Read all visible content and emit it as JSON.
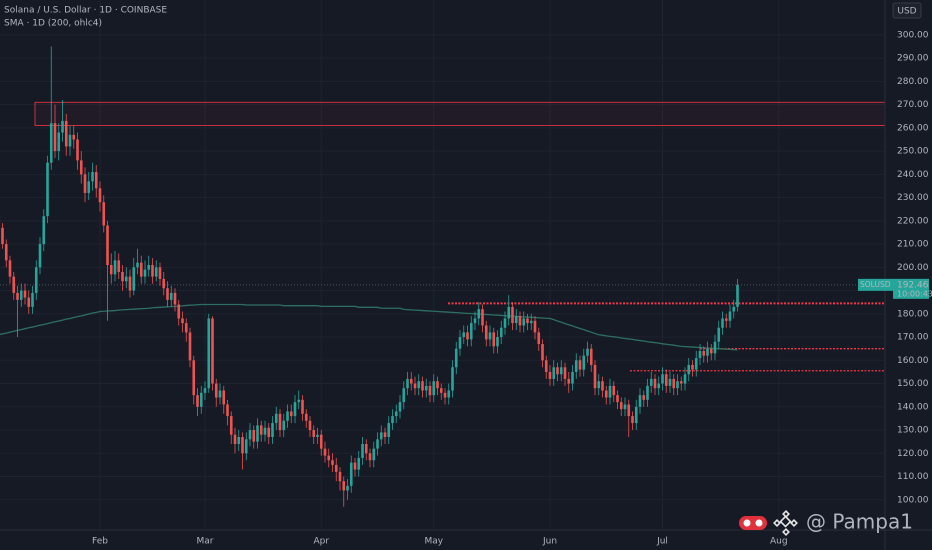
{
  "chart_data": {
    "type": "candlestick",
    "title": "Solana / U.S. Dollar · 1D · COINBASE",
    "indicator_label": "SMA · 1D (200, ohlc4)",
    "currency": "USD",
    "symbol": "SOLUSD",
    "countdown": "10:00:43",
    "watermark": "@ Pampa1",
    "up_color": "#26a69a",
    "down_color": "#ef5350",
    "level_color": "#f23645",
    "grid": true,
    "categories": [
      null,
      null,
      null,
      null,
      null,
      null,
      null,
      null,
      null,
      null,
      null,
      null,
      null,
      null,
      null,
      null,
      null,
      null,
      null,
      null,
      null,
      null,
      null,
      null,
      null,
      null,
      null,
      "Feb",
      null,
      null,
      null,
      null,
      null,
      null,
      null,
      null,
      null,
      null,
      null,
      null,
      null,
      null,
      null,
      null,
      null,
      null,
      null,
      null,
      null,
      null,
      null,
      null,
      null,
      null,
      null,
      "Mar",
      null,
      null,
      null,
      null,
      null,
      null,
      null,
      null,
      null,
      null,
      null,
      null,
      null,
      null,
      null,
      null,
      null,
      null,
      null,
      null,
      null,
      null,
      null,
      null,
      null,
      null,
      null,
      null,
      null,
      null,
      "Apr",
      null,
      null,
      null,
      null,
      null,
      null,
      null,
      null,
      null,
      null,
      null,
      null,
      null,
      null,
      null,
      null,
      null,
      null,
      null,
      null,
      null,
      null,
      null,
      null,
      null,
      null,
      null,
      null,
      null,
      "May",
      null,
      null,
      null,
      null,
      null,
      null,
      null,
      null,
      null,
      null,
      null,
      null,
      null,
      null,
      null,
      null,
      null,
      null,
      null,
      null,
      null,
      null,
      null,
      null,
      null,
      null,
      null,
      null,
      null,
      null,
      "Jun",
      null,
      null,
      null,
      null,
      null,
      null,
      null,
      null,
      null,
      null,
      null,
      null,
      null,
      null,
      null,
      null,
      null,
      null,
      null,
      null,
      null,
      null,
      null,
      null,
      null,
      null,
      null,
      null,
      null,
      "Jul",
      null,
      null,
      null,
      null,
      null,
      null,
      null,
      null,
      null,
      null,
      null,
      null,
      null,
      null,
      null,
      null,
      null,
      null,
      null,
      null,
      null,
      null,
      null,
      null,
      null,
      null,
      null,
      null,
      null,
      null,
      "Aug"
    ],
    "open": [
      222,
      217,
      210,
      203,
      196,
      189,
      186,
      190,
      187,
      183,
      189,
      200,
      210,
      222,
      245,
      262,
      250,
      258,
      263,
      252,
      257,
      255,
      246,
      240,
      232,
      237,
      241,
      234,
      228,
      218,
      201,
      197,
      203,
      198,
      194,
      196,
      190,
      200,
      202,
      196,
      199,
      201,
      196,
      200,
      195,
      191,
      186,
      189,
      184,
      178,
      176,
      172,
      160,
      145,
      140,
      146,
      148,
      178,
      150,
      144,
      147,
      141,
      136,
      128,
      124,
      127,
      120,
      126,
      130,
      125,
      132,
      128,
      131,
      127,
      133,
      137,
      130,
      134,
      138,
      136,
      142,
      143,
      137,
      134,
      130,
      127,
      128,
      122,
      119,
      117,
      115,
      112,
      108,
      104,
      106,
      116,
      113,
      118,
      124,
      120,
      117,
      122,
      126,
      129,
      127,
      133,
      136,
      138,
      142,
      148,
      152,
      150,
      148,
      151,
      147,
      149,
      145,
      151,
      148,
      146,
      144,
      147,
      157,
      165,
      170,
      172,
      169,
      176,
      178,
      182,
      175,
      169,
      172,
      166,
      170,
      174,
      178,
      183,
      176,
      179,
      175,
      178,
      176,
      177,
      172,
      167,
      160,
      155,
      152,
      157,
      154,
      157,
      152,
      150,
      155,
      160,
      156,
      162,
      165,
      158,
      148,
      151,
      147,
      144,
      149,
      145,
      142,
      139,
      141,
      136,
      133,
      140,
      145,
      143,
      149,
      152,
      148,
      150,
      154,
      149,
      152,
      148,
      151,
      150,
      154,
      158,
      156,
      161,
      164,
      162,
      165,
      163,
      168,
      174,
      178,
      177,
      181,
      183,
      null,
      null,
      null,
      null,
      null,
      null,
      null,
      null,
      null,
      null,
      null
    ],
    "high": [
      224,
      219,
      212,
      205,
      198,
      192,
      193,
      193,
      190,
      192,
      203,
      213,
      225,
      248,
      295,
      270,
      262,
      272,
      266,
      261,
      261,
      258,
      250,
      243,
      241,
      245,
      244,
      237,
      231,
      220,
      206,
      207,
      206,
      201,
      200,
      199,
      204,
      208,
      205,
      203,
      205,
      204,
      203,
      202,
      198,
      194,
      192,
      191,
      186,
      181,
      178,
      174,
      162,
      148,
      149,
      151,
      180,
      179,
      152,
      150,
      149,
      143,
      138,
      131,
      130,
      129,
      129,
      133,
      132,
      135,
      134,
      134,
      133,
      136,
      140,
      139,
      137,
      141,
      141,
      145,
      147,
      145,
      139,
      136,
      132,
      131,
      130,
      125,
      122,
      120,
      118,
      114,
      110,
      109,
      119,
      118,
      121,
      127,
      126,
      122,
      125,
      129,
      132,
      131,
      136,
      139,
      141,
      145,
      151,
      155,
      155,
      153,
      154,
      153,
      152,
      151,
      154,
      153,
      150,
      148,
      150,
      160,
      168,
      173,
      175,
      175,
      179,
      181,
      185,
      184,
      177,
      175,
      174,
      173,
      177,
      181,
      188,
      185,
      182,
      181,
      181,
      180,
      180,
      179,
      174,
      169,
      162,
      158,
      160,
      159,
      160,
      159,
      155,
      158,
      163,
      162,
      165,
      168,
      167,
      160,
      154,
      153,
      149,
      152,
      151,
      147,
      144,
      144,
      143,
      138,
      143,
      148,
      147,
      152,
      155,
      154,
      153,
      157,
      156,
      155,
      154,
      154,
      153,
      157,
      161,
      160,
      164,
      167,
      166,
      168,
      167,
      171,
      177,
      181,
      180,
      184,
      186,
      195,
      null,
      null,
      null,
      null,
      null,
      null,
      null,
      null,
      null,
      null,
      null
    ],
    "low": [
      215,
      208,
      200,
      193,
      186,
      170,
      183,
      184,
      180,
      180,
      186,
      197,
      207,
      219,
      242,
      247,
      246,
      254,
      248,
      248,
      251,
      242,
      236,
      228,
      229,
      233,
      230,
      224,
      215,
      177,
      193,
      194,
      195,
      190,
      191,
      187,
      188,
      197,
      193,
      193,
      196,
      193,
      194,
      192,
      188,
      183,
      183,
      181,
      175,
      172,
      168,
      157,
      141,
      136,
      137,
      143,
      146,
      147,
      140,
      141,
      137,
      132,
      124,
      120,
      121,
      113,
      117,
      123,
      122,
      122,
      125,
      125,
      124,
      124,
      130,
      127,
      127,
      131,
      133,
      133,
      139,
      134,
      131,
      127,
      124,
      124,
      119,
      116,
      114,
      112,
      108,
      104,
      97,
      100,
      103,
      110,
      110,
      115,
      117,
      114,
      114,
      119,
      123,
      124,
      124,
      130,
      133,
      135,
      139,
      145,
      147,
      145,
      145,
      144,
      144,
      142,
      142,
      145,
      143,
      141,
      141,
      144,
      154,
      162,
      167,
      166,
      166,
      173,
      175,
      172,
      166,
      166,
      163,
      163,
      167,
      171,
      175,
      173,
      173,
      172,
      172,
      173,
      173,
      169,
      164,
      157,
      152,
      149,
      149,
      151,
      151,
      149,
      146,
      147,
      152,
      153,
      153,
      159,
      155,
      145,
      145,
      144,
      141,
      141,
      142,
      139,
      136,
      136,
      127,
      130,
      130,
      137,
      140,
      140,
      146,
      145,
      145,
      147,
      146,
      146,
      145,
      145,
      147,
      147,
      151,
      153,
      153,
      158,
      159,
      159,
      160,
      160,
      165,
      171,
      174,
      174,
      178,
      181,
      null,
      null,
      null,
      null,
      null,
      null,
      null,
      null,
      null,
      null,
      null
    ],
    "close": [
      217,
      210,
      203,
      196,
      189,
      186,
      190,
      187,
      183,
      189,
      200,
      210,
      222,
      245,
      262,
      250,
      258,
      263,
      252,
      257,
      255,
      246,
      240,
      232,
      237,
      241,
      234,
      228,
      218,
      201,
      197,
      203,
      198,
      194,
      196,
      190,
      200,
      202,
      196,
      199,
      201,
      196,
      200,
      195,
      191,
      186,
      189,
      184,
      178,
      176,
      172,
      160,
      145,
      140,
      146,
      148,
      178,
      150,
      144,
      147,
      141,
      136,
      128,
      124,
      127,
      120,
      126,
      130,
      125,
      132,
      128,
      131,
      127,
      133,
      137,
      130,
      134,
      138,
      136,
      142,
      143,
      137,
      134,
      130,
      127,
      128,
      122,
      119,
      117,
      115,
      112,
      108,
      104,
      106,
      116,
      113,
      118,
      124,
      120,
      117,
      122,
      126,
      129,
      127,
      133,
      136,
      138,
      142,
      148,
      152,
      150,
      148,
      151,
      147,
      149,
      145,
      151,
      148,
      146,
      144,
      147,
      157,
      165,
      170,
      172,
      169,
      176,
      178,
      182,
      175,
      169,
      172,
      166,
      170,
      174,
      178,
      183,
      176,
      179,
      175,
      178,
      176,
      177,
      172,
      167,
      160,
      155,
      152,
      157,
      154,
      157,
      152,
      150,
      155,
      160,
      156,
      162,
      165,
      158,
      148,
      151,
      147,
      144,
      149,
      145,
      142,
      139,
      141,
      136,
      133,
      140,
      145,
      143,
      149,
      152,
      148,
      150,
      154,
      149,
      152,
      148,
      151,
      150,
      154,
      158,
      156,
      161,
      164,
      162,
      165,
      163,
      168,
      174,
      178,
      177,
      181,
      183,
      192.46,
      null,
      null,
      null,
      null,
      null,
      null,
      null,
      null,
      null,
      null,
      null
    ],
    "sma": {
      "color": "#2e6f62",
      "values": [
        171,
        171.4,
        171.7,
        172.1,
        172.5,
        172.9,
        173.2,
        173.6,
        174,
        174.3,
        174.7,
        175.1,
        175.4,
        175.8,
        176.2,
        176.6,
        176.9,
        177.3,
        177.7,
        178,
        178.4,
        178.8,
        179.1,
        179.5,
        179.9,
        180.3,
        180.6,
        181,
        181.1,
        181.2,
        181.3,
        181.4,
        181.6,
        181.7,
        181.8,
        181.9,
        182,
        182.1,
        182.2,
        182.3,
        182.4,
        182.6,
        182.7,
        182.8,
        182.9,
        183,
        183.1,
        183.2,
        183.3,
        183.4,
        183.6,
        183.7,
        183.8,
        183.9,
        184,
        184,
        184,
        184,
        184,
        184,
        184,
        184,
        184,
        184,
        184,
        184,
        183.8,
        183.8,
        183.8,
        183.8,
        183.8,
        183.8,
        183.8,
        183.8,
        183.8,
        183.8,
        183.5,
        183.5,
        183.5,
        183.5,
        183.5,
        183.5,
        183.5,
        183.5,
        183.5,
        183.5,
        183.2,
        183.2,
        183.2,
        183.2,
        183.2,
        183.2,
        183.2,
        183.2,
        183.2,
        183.2,
        182.8,
        182.8,
        182.8,
        182.8,
        182.8,
        182.8,
        182.4,
        182.4,
        182.4,
        182.4,
        182.4,
        182.4,
        181.9,
        181.8,
        181.7,
        181.6,
        181.5,
        181.4,
        181.3,
        181.2,
        181.1,
        181,
        180.9,
        180.8,
        180.7,
        180.6,
        180.5,
        180.4,
        180.3,
        180.2,
        180.1,
        180,
        179.9,
        179.8,
        179.7,
        179.6,
        179.5,
        179.4,
        179.3,
        179.2,
        179.1,
        179,
        178.9,
        178.8,
        178.7,
        178.6,
        178.5,
        178.4,
        178.3,
        178.2,
        178.1,
        178,
        177.5,
        176.9,
        176.4,
        175.8,
        175.3,
        174.8,
        174.2,
        173.7,
        173.2,
        172.6,
        172.1,
        171.5,
        171,
        170.8,
        170.5,
        170.3,
        170.1,
        169.9,
        169.6,
        169.4,
        169.2,
        169,
        168.7,
        168.5,
        168.3,
        168,
        167.8,
        167.6,
        167.4,
        167.1,
        166.9,
        166.7,
        166.5,
        166.2,
        166,
        165.9,
        165.8,
        165.7,
        165.6,
        165.5,
        165.4,
        165.3,
        165.2,
        165.1,
        165,
        164.9,
        164.8,
        164.7,
        164.6,
        164.5,
        null,
        null,
        null,
        null,
        null,
        null,
        null,
        null,
        null,
        null,
        null
      ]
    },
    "zone": [
      261,
      271
    ],
    "levels": [
      184.5,
      165,
      155.5
    ],
    "ylim": [
      87,
      315
    ],
    "yticks": [
      {
        "value": 100,
        "label": "100.00"
      },
      {
        "value": 110,
        "label": "110.00"
      },
      {
        "value": 120,
        "label": "120.00"
      },
      {
        "value": 130,
        "label": "130.00"
      },
      {
        "value": 140,
        "label": "140.00"
      },
      {
        "value": 150,
        "label": "150.00"
      },
      {
        "value": 160,
        "label": "160.00"
      },
      {
        "value": 170,
        "label": "170.00"
      },
      {
        "value": 180,
        "label": "180.00"
      },
      {
        "value": 190,
        "label": "190.00"
      },
      {
        "value": 200,
        "label": "200.00"
      },
      {
        "value": 210,
        "label": "210.00"
      },
      {
        "value": 220,
        "label": "220.00"
      },
      {
        "value": 230,
        "label": "230.00"
      },
      {
        "value": 240,
        "label": "240.00"
      },
      {
        "value": 250,
        "label": "250.00"
      },
      {
        "value": 260,
        "label": "260.00"
      },
      {
        "value": 270,
        "label": "270.00"
      },
      {
        "value": 280,
        "label": "280.00"
      },
      {
        "value": 290,
        "label": "290.00"
      },
      {
        "value": 300,
        "label": "300.00"
      }
    ]
  }
}
